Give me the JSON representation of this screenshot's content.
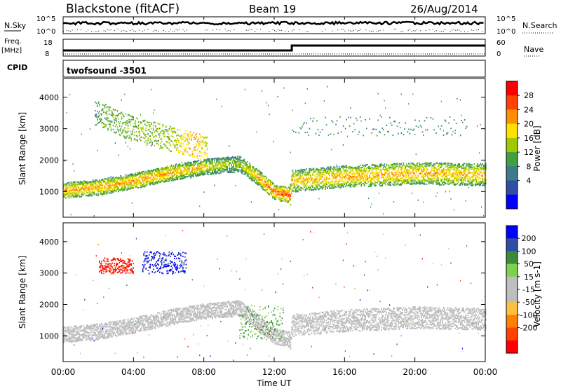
{
  "header": {
    "station": "Blackstone (fitACF)",
    "beam": "Beam 19",
    "date": "26/Aug/2014"
  },
  "nsky_panel": {
    "left_label": "N.Sky",
    "right_label": "N.Search",
    "left_ticks": [
      "10^5",
      "10^0"
    ],
    "right_ticks": [
      "10^5",
      "10^0"
    ]
  },
  "freq_panel": {
    "left_label_line1": "Freq.",
    "left_label_line2": "[MHz]",
    "right_label": "Nave",
    "left_ticks": [
      "18",
      "8"
    ],
    "right_ticks": [
      "60",
      "0"
    ]
  },
  "cpid_panel": {
    "label": "CPID",
    "text": "twofsound  -3501"
  },
  "colors": {
    "power_scale": [
      "#0000ff",
      "#2e4fa6",
      "#3c7a8c",
      "#40a040",
      "#a0c800",
      "#ffe000",
      "#ff9000",
      "#ff4000",
      "#ff0000"
    ],
    "velocity_scale": [
      "#0000ff",
      "#2e4fa6",
      "#3c8a3c",
      "#80d050",
      "#bebebe",
      "#bebebe",
      "#ffc040",
      "#ff8000",
      "#ff4000",
      "#ff0000"
    ],
    "ground_scatter": "#bebebe"
  },
  "chart_data": [
    {
      "type": "heatmap",
      "title": "",
      "xlabel": "",
      "ylabel": "Slant Range [km]",
      "colorbar_label": "Power [dB]",
      "colorbar_ticks": [
        "28",
        "24",
        "20",
        "16",
        "12",
        "8",
        "4"
      ],
      "x_ticks": [
        "00:00",
        "04:00",
        "08:00",
        "12:00",
        "16:00",
        "20:00",
        "00:00"
      ],
      "y_ticks": [
        "1000",
        "2000",
        "3000",
        "4000"
      ],
      "xlim": [
        0,
        24
      ],
      "ylim": [
        180,
        4600
      ],
      "bands": [
        {
          "name": "main_echo",
          "x": [
            0,
            2,
            4,
            6,
            8,
            10,
            11,
            12,
            12.9,
            13,
            16,
            20,
            24
          ],
          "y": [
            1050,
            1150,
            1350,
            1600,
            1800,
            1900,
            1500,
            1000,
            900,
            1350,
            1500,
            1600,
            1550
          ],
          "power": [
            22,
            22,
            22,
            22,
            18,
            14,
            22,
            26,
            26,
            20,
            22,
            22,
            20
          ]
        },
        {
          "name": "upper_echo",
          "x": [
            2,
            4,
            6,
            7.5,
            8
          ],
          "y": [
            3500,
            3000,
            2700,
            2500,
            2400
          ],
          "power": [
            10,
            12,
            14,
            20,
            16
          ]
        }
      ]
    },
    {
      "type": "heatmap",
      "title": "",
      "xlabel": "Time UT",
      "ylabel": "Slant Range [km]",
      "colorbar_label": "Velocity [m s-1]",
      "colorbar_ticks": [
        "200",
        "100",
        "50",
        "15",
        "-15",
        "-50",
        "-100",
        "-200"
      ],
      "x_ticks": [
        "00:00",
        "04:00",
        "08:00",
        "12:00",
        "16:00",
        "20:00",
        "00:00"
      ],
      "y_ticks": [
        "1000",
        "2000",
        "3000",
        "4000"
      ],
      "xlim": [
        0,
        24
      ],
      "ylim": [
        180,
        4600
      ],
      "features": [
        {
          "name": "ground_scatter",
          "x": [
            0,
            24
          ],
          "y_range": [
            1000,
            2000
          ],
          "velocity": 0
        },
        {
          "name": "red_patch",
          "x": [
            2,
            4
          ],
          "y_range": [
            3000,
            3500
          ],
          "velocity": -200
        },
        {
          "name": "blue_patch",
          "x": [
            4.5,
            7
          ],
          "y_range": [
            3000,
            3700
          ],
          "velocity": 200
        },
        {
          "name": "green_streak",
          "x": [
            10,
            12.5
          ],
          "y_range": [
            900,
            2000
          ],
          "velocity": 40
        }
      ]
    }
  ],
  "axis_title_x": "Time UT"
}
